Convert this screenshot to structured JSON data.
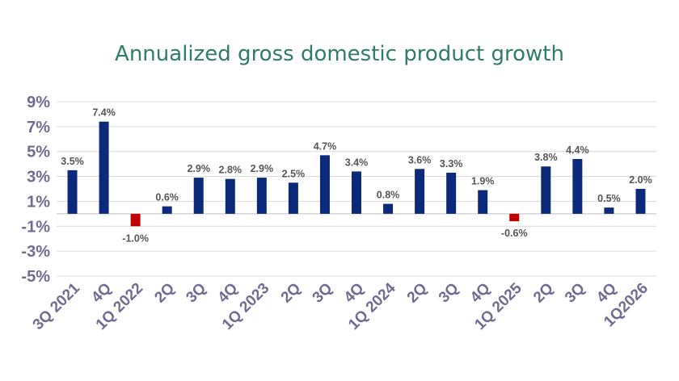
{
  "chart_data": {
    "type": "bar",
    "title": "Annualized gross domestic product growth",
    "xlabel": "",
    "ylabel": "",
    "categories": [
      "3Q 2021",
      "4Q",
      "1Q 2022",
      "2Q",
      "3Q",
      "4Q",
      "1Q 2023",
      "2Q",
      "3Q",
      "4Q",
      "1Q 2024",
      "2Q",
      "3Q",
      "4Q",
      "1Q 2025",
      "2Q",
      "3Q",
      "4Q",
      "1Q2026"
    ],
    "values": [
      3.5,
      7.4,
      -1.0,
      0.6,
      2.9,
      2.8,
      2.9,
      2.5,
      4.7,
      3.4,
      0.8,
      3.6,
      3.3,
      1.9,
      -0.6,
      3.8,
      4.4,
      0.5,
      2.0
    ],
    "data_labels": [
      "3.5%",
      "7.4%",
      "-1.0%",
      "0.6%",
      "2.9%",
      "2.8%",
      "2.9%",
      "2.5%",
      "4.7%",
      "3.4%",
      "0.8%",
      "3.6%",
      "3.3%",
      "1.9%",
      "-0.6%",
      "3.8%",
      "4.4%",
      "0.5%",
      "2.0%"
    ],
    "ylim": [
      -5,
      9
    ],
    "yticks": [
      9,
      7,
      5,
      3,
      1,
      -1,
      -3,
      -5
    ],
    "ytick_labels": [
      "9%",
      "7%",
      "5%",
      "3%",
      "1%",
      "-1%",
      "-3%",
      "-5%"
    ],
    "grid": true,
    "legend": "none",
    "colors": {
      "positive": "#0b2a7a",
      "negative": "#c00000"
    }
  }
}
